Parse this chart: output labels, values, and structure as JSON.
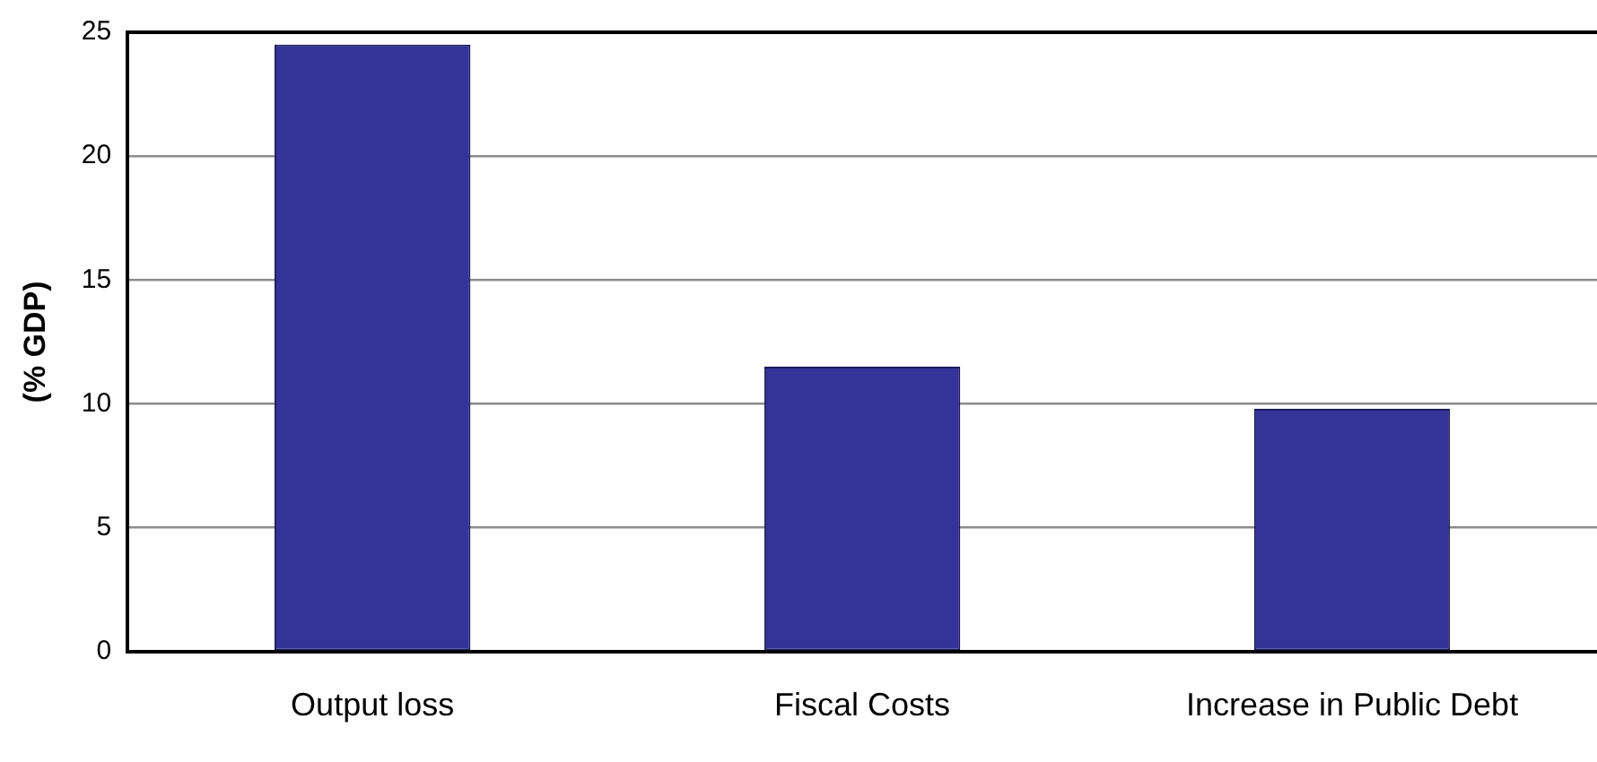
{
  "chart_data": {
    "type": "bar",
    "ylabel": "(% GDP)",
    "categories": [
      "Output loss",
      "Fiscal Costs",
      "Increase in Public Debt"
    ],
    "values": [
      24.5,
      11.5,
      9.8
    ],
    "color": "#333399",
    "ylim": [
      0,
      25
    ],
    "yticks": [
      0,
      5,
      10,
      15,
      20,
      25
    ],
    "grid": "y"
  }
}
